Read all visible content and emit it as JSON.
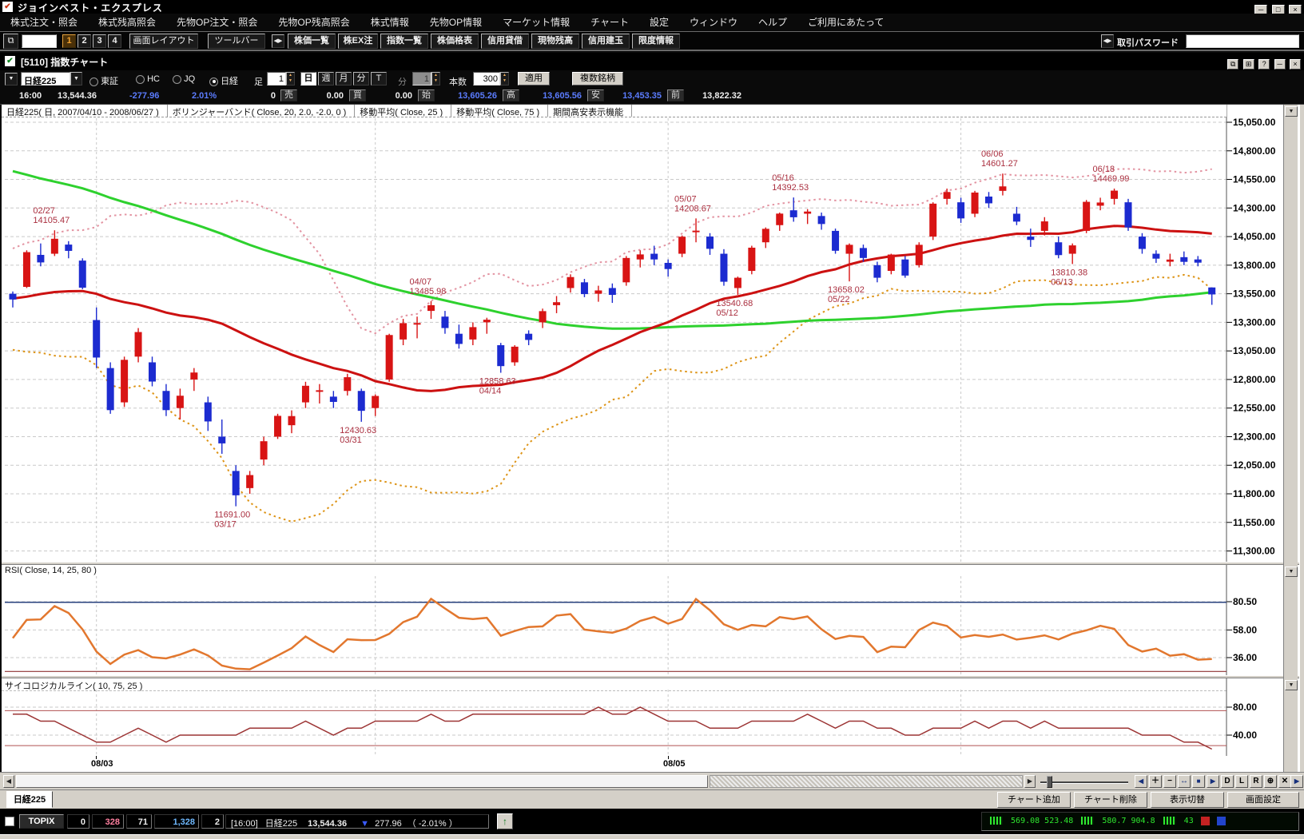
{
  "titlebar": {
    "title": "ジョインベスト・エクスプレス"
  },
  "icons": {
    "app_check": "✔",
    "win_check": "✔",
    "minimize": "─",
    "maximize": "□",
    "close": "×",
    "dropdown": "▼",
    "spinner_up": "▲",
    "spinner_down": "▼",
    "grip": "◀▶",
    "left_arrow": "◀",
    "right_arrow": "▶",
    "down_triangle": "▼",
    "up_arrow": "↑",
    "win_restore": "⧉",
    "win_grid": "⊞",
    "help": "?"
  },
  "menubar": {
    "items": [
      "株式注文・照会",
      "株式残高照会",
      "先物OP注文・照会",
      "先物OP残高照会",
      "株式情報",
      "先物OP情報",
      "マーケット情報",
      "チャート",
      "設定",
      "ウィンドウ",
      "ヘルプ",
      "ご利用にあたって"
    ]
  },
  "toolbar": {
    "num_buttons": [
      "1",
      "2",
      "3",
      "4"
    ],
    "layout_label": "画面レイアウト",
    "toolbar_label": "ツールバー",
    "buttons": [
      "株価一覧",
      "株EX注",
      "指数一覧",
      "株価格表",
      "信用貸借",
      "現物残高",
      "信用建玉",
      "限度情報"
    ],
    "password_label": "取引パスワード"
  },
  "chart_window": {
    "title": "[5110] 指数チャート"
  },
  "chart_controls": {
    "symbol": "日経225",
    "markets": [
      "東証",
      "HC",
      "JQ",
      "日経"
    ],
    "selected_market": "日経",
    "ashi_label": "足",
    "ashi_value": "1",
    "periods": [
      "日",
      "週",
      "月",
      "分",
      "T"
    ],
    "selected_period": "日",
    "minute_label": "分",
    "minute_value": "1",
    "count_label": "本数",
    "count_value": "300",
    "apply_label": "適用",
    "multi_label": "複数銘柄"
  },
  "quote": {
    "time": "16:00",
    "price": "13,544.36",
    "change": "-277.96",
    "change_pct": "2.01%",
    "volume": "0",
    "f0l": "売",
    "f0v": "0.00",
    "f1l": "買",
    "f1v": "0.00",
    "f2l": "始",
    "f2v": "13,605.26",
    "f3l": "高",
    "f3v": "13,605.56",
    "f4l": "安",
    "f4v": "13,453.35",
    "f5l": "前",
    "f5v": "13,822.32"
  },
  "chart_data": {
    "type": "candlestick",
    "legend": {
      "title": "日経225( 日, 2007/04/10 - 2008/06/27 )",
      "bollinger": "ボリンジャーバンド( Close, 20, 2.0, -2.0, 0 )",
      "ma25": "移動平均( Close, 25 )",
      "ma75": "移動平均( Close, 75 )",
      "highlow": "期間高安表示機能"
    },
    "y_axis": {
      "max": 15050,
      "min": 11300,
      "step": 250
    },
    "x_labels": [
      {
        "label": "08/03",
        "index": 6
      },
      {
        "label": "08/05",
        "index": 47
      }
    ],
    "month_gridlines": [
      6,
      26,
      47,
      68
    ],
    "candles": [
      [
        13550,
        13570,
        13430,
        13500
      ],
      [
        13610,
        13930,
        13600,
        13914
      ],
      [
        13890,
        13990,
        13790,
        13824
      ],
      [
        13900,
        14105,
        13880,
        14031
      ],
      [
        13980,
        14010,
        13860,
        13925
      ],
      [
        13840,
        13860,
        13590,
        13603
      ],
      [
        13320,
        13430,
        12900,
        12992
      ],
      [
        12900,
        12950,
        12500,
        12532
      ],
      [
        12600,
        13000,
        12560,
        12972
      ],
      [
        13000,
        13250,
        12950,
        13215
      ],
      [
        12950,
        13000,
        12740,
        12782
      ],
      [
        12700,
        12760,
        12480,
        12532
      ],
      [
        12550,
        12720,
        12450,
        12658
      ],
      [
        12800,
        12900,
        12700,
        12861
      ],
      [
        12600,
        12650,
        12350,
        12433
      ],
      [
        12300,
        12450,
        12150,
        12241
      ],
      [
        12000,
        12050,
        11691,
        11787
      ],
      [
        11850,
        12000,
        11800,
        11964
      ],
      [
        12100,
        12300,
        12050,
        12260
      ],
      [
        12300,
        12500,
        12280,
        12482
      ],
      [
        12400,
        12530,
        12330,
        12480
      ],
      [
        12600,
        12780,
        12550,
        12745
      ],
      [
        12700,
        12760,
        12590,
        12706
      ],
      [
        12650,
        12700,
        12550,
        12604
      ],
      [
        12700,
        12850,
        12660,
        12820
      ],
      [
        12700,
        12720,
        12430,
        12526
      ],
      [
        12550,
        12670,
        12480,
        12656
      ],
      [
        12800,
        13200,
        12780,
        13189
      ],
      [
        13150,
        13330,
        13100,
        13293
      ],
      [
        13280,
        13350,
        13160,
        13294
      ],
      [
        13400,
        13486,
        13330,
        13450
      ],
      [
        13350,
        13400,
        13200,
        13250
      ],
      [
        13200,
        13280,
        13070,
        13111
      ],
      [
        13150,
        13300,
        13100,
        13258
      ],
      [
        13300,
        13340,
        13200,
        13323
      ],
      [
        13100,
        13120,
        12859,
        12917
      ],
      [
        12950,
        13100,
        12920,
        13087
      ],
      [
        13200,
        13230,
        13100,
        13146
      ],
      [
        13300,
        13420,
        13250,
        13398
      ],
      [
        13450,
        13530,
        13380,
        13476
      ],
      [
        13600,
        13720,
        13560,
        13696
      ],
      [
        13650,
        13680,
        13520,
        13547
      ],
      [
        13550,
        13620,
        13480,
        13579
      ],
      [
        13600,
        13640,
        13470,
        13540
      ],
      [
        13650,
        13880,
        13620,
        13863
      ],
      [
        13850,
        13930,
        13780,
        13894
      ],
      [
        13900,
        13970,
        13800,
        13850
      ],
      [
        13820,
        13850,
        13700,
        13766
      ],
      [
        13900,
        14060,
        13870,
        14049
      ],
      [
        14100,
        14209,
        14000,
        14102
      ],
      [
        14050,
        14080,
        13890,
        13943
      ],
      [
        13900,
        13940,
        13620,
        13655
      ],
      [
        13600,
        13700,
        13541,
        13690
      ],
      [
        13750,
        13970,
        13720,
        13953
      ],
      [
        14000,
        14130,
        13950,
        14118
      ],
      [
        14150,
        14260,
        14100,
        14251
      ],
      [
        14280,
        14392,
        14180,
        14219
      ],
      [
        14250,
        14290,
        14160,
        14269
      ],
      [
        14230,
        14260,
        14110,
        14160
      ],
      [
        14100,
        14120,
        13900,
        13926
      ],
      [
        13900,
        13990,
        13658,
        13978
      ],
      [
        13950,
        13980,
        13830,
        13863
      ],
      [
        13800,
        13830,
        13650,
        13690
      ],
      [
        13750,
        13900,
        13720,
        13893
      ],
      [
        13850,
        13880,
        13690,
        13709
      ],
      [
        13800,
        14000,
        13780,
        13978
      ],
      [
        14050,
        14350,
        14020,
        14338
      ],
      [
        14380,
        14470,
        14330,
        14440
      ],
      [
        14350,
        14390,
        14170,
        14209
      ],
      [
        14250,
        14450,
        14220,
        14435
      ],
      [
        14400,
        14440,
        14300,
        14341
      ],
      [
        14450,
        14601,
        14410,
        14489
      ],
      [
        14250,
        14310,
        14150,
        14181
      ],
      [
        14050,
        14120,
        13960,
        14021
      ],
      [
        14100,
        14220,
        14060,
        14183
      ],
      [
        14000,
        14050,
        13860,
        13888
      ],
      [
        13900,
        13990,
        13810,
        13973
      ],
      [
        14100,
        14370,
        14080,
        14354
      ],
      [
        14320,
        14390,
        14280,
        14348
      ],
      [
        14380,
        14470,
        14330,
        14452
      ],
      [
        14350,
        14380,
        14100,
        14130
      ],
      [
        14050,
        14080,
        13900,
        13942
      ],
      [
        13900,
        13930,
        13820,
        13857
      ],
      [
        13830,
        13900,
        13790,
        13849
      ],
      [
        13870,
        13920,
        13800,
        13829
      ],
      [
        13850,
        13880,
        13790,
        13822
      ],
      [
        13605,
        13606,
        13453,
        13544
      ]
    ],
    "warmup_closes": [
      16800,
      16700,
      16650,
      16550,
      16450,
      16400,
      16300,
      16250,
      16100,
      16000,
      15950,
      15900,
      15850,
      15800,
      15750,
      15700,
      15680,
      15650,
      15620,
      15600,
      15550,
      15500,
      15450,
      15400,
      15350,
      15300,
      15350,
      15400,
      15450,
      15500,
      15550,
      15600,
      15650,
      15550,
      15450,
      15350,
      15300,
      15250,
      15200,
      15150,
      15100,
      15050,
      15000,
      14950,
      15308,
      14700,
      14500,
      14250,
      14100,
      13900,
      13700,
      13500,
      13325,
      13600,
      13850,
      13700,
      13500,
      13250,
      13600,
      13750,
      13550,
      13600,
      13650,
      13700,
      13750,
      13600,
      13450,
      13300,
      13200,
      13000,
      13100,
      13250,
      13450,
      13600,
      13700,
      13750,
      13800,
      13650,
      13550,
      13450
    ],
    "annotations": [
      {
        "idx": 3,
        "date": "02/27",
        "value": "14105.47",
        "type": "high"
      },
      {
        "idx": 16,
        "date": "03/17",
        "value": "11691.00",
        "type": "low"
      },
      {
        "idx": 25,
        "date": "03/31",
        "value": "12430.63",
        "type": "low"
      },
      {
        "idx": 30,
        "date": "04/07",
        "value": "13485.98",
        "type": "high"
      },
      {
        "idx": 35,
        "date": "04/14",
        "value": "12858.63",
        "type": "low"
      },
      {
        "idx": 49,
        "date": "05/07",
        "value": "14208.67",
        "type": "high"
      },
      {
        "idx": 52,
        "date": "05/12",
        "value": "13540.68",
        "type": "low"
      },
      {
        "idx": 56,
        "date": "05/16",
        "value": "14392.53",
        "type": "high"
      },
      {
        "idx": 60,
        "date": "05/22",
        "value": "13658.02",
        "type": "low"
      },
      {
        "idx": 71,
        "date": "06/06",
        "value": "14601.27",
        "type": "high"
      },
      {
        "idx": 76,
        "date": "06/13",
        "value": "13810.38",
        "type": "low"
      },
      {
        "idx": 79,
        "date": "06/18",
        "value": "14469.99",
        "type": "high"
      }
    ],
    "sub": {
      "rsi": {
        "label": "RSI( Close, 14, 25, 80 )",
        "period": 14,
        "lower_level": 25,
        "upper_level": 80,
        "ticks": [
          80.5,
          58,
          36
        ]
      },
      "psych": {
        "label": "サイコロジカルライン( 10, 75, 25 )",
        "period": 10,
        "upper_level": 75,
        "lower_level": 25,
        "ticks": [
          80,
          40
        ]
      }
    },
    "colors": {
      "up": "#d81414",
      "down": "#1c2bd0",
      "ma25": "#cc1111",
      "ma75": "#2ed12e",
      "boll_upper": "#e394a2",
      "boll_lower": "#dd9417",
      "rsi": "#e2772e",
      "rsi_upper_line": "#27417d",
      "rsi_lower_line": "#8f3333",
      "psych": "#9c3434",
      "psych_level_line": "#b05050",
      "annotation": "#aa2f3f"
    }
  },
  "scrollbar": {
    "buttons": [
      "◀",
      "＋",
      "−",
      "↔",
      "■",
      "▶",
      "D",
      "L",
      "R",
      "⊕",
      "✕",
      "▶"
    ]
  },
  "bottom": {
    "tab": "日経225",
    "add": "チャート追加",
    "del": "チャート削除",
    "toggle": "表示切替",
    "settings": "画面設定"
  },
  "statusbar": {
    "index_label": "TOPIX",
    "v1": "0",
    "v2": "328",
    "v3": "71",
    "v4": "1,328",
    "v5": "2",
    "time": "[16:00]",
    "name": "日経225",
    "price": "13,544.36",
    "change": "277.96",
    "change_pct": "（ -2.01% ）",
    "meter_left": "569.08 523.48",
    "meter_right": "580.7 904.8",
    "meter_pct": "43"
  }
}
